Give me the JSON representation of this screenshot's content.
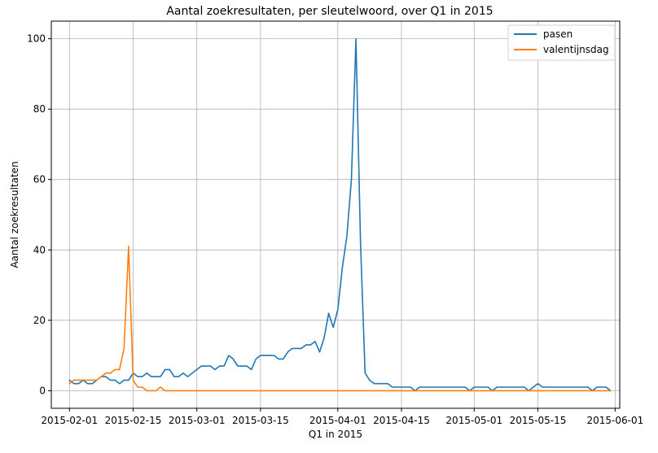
{
  "chart_data": {
    "type": "line",
    "title": "Aantal zoekresultaten, per sleutelwoord, over Q1 in 2015",
    "xlabel": "Q1 in 2015",
    "ylabel": "Aantal zoekresultaten",
    "xlim": [
      "2015-01-28",
      "2015-06-02"
    ],
    "ylim": [
      -5,
      105
    ],
    "grid": true,
    "legend_position": "top-right",
    "x_ticks": [
      "2015-02-01",
      "2015-02-15",
      "2015-03-01",
      "2015-03-15",
      "2015-04-01",
      "2015-04-15",
      "2015-05-01",
      "2015-05-15",
      "2015-06-01"
    ],
    "y_ticks": [
      0,
      20,
      40,
      60,
      80,
      100
    ],
    "series": [
      {
        "name": "pasen",
        "color": "#1f77b4",
        "points": [
          [
            "2015-02-01",
            3
          ],
          [
            "2015-02-02",
            2
          ],
          [
            "2015-02-03",
            2
          ],
          [
            "2015-02-04",
            3
          ],
          [
            "2015-02-05",
            2
          ],
          [
            "2015-02-06",
            2
          ],
          [
            "2015-02-07",
            3
          ],
          [
            "2015-02-08",
            4
          ],
          [
            "2015-02-09",
            4
          ],
          [
            "2015-02-10",
            3
          ],
          [
            "2015-02-11",
            3
          ],
          [
            "2015-02-12",
            2
          ],
          [
            "2015-02-13",
            3
          ],
          [
            "2015-02-14",
            3
          ],
          [
            "2015-02-15",
            5
          ],
          [
            "2015-02-16",
            4
          ],
          [
            "2015-02-17",
            4
          ],
          [
            "2015-02-18",
            5
          ],
          [
            "2015-02-19",
            4
          ],
          [
            "2015-02-20",
            4
          ],
          [
            "2015-02-21",
            4
          ],
          [
            "2015-02-22",
            6
          ],
          [
            "2015-02-23",
            6
          ],
          [
            "2015-02-24",
            4
          ],
          [
            "2015-02-25",
            4
          ],
          [
            "2015-02-26",
            5
          ],
          [
            "2015-02-27",
            4
          ],
          [
            "2015-02-28",
            5
          ],
          [
            "2015-03-01",
            6
          ],
          [
            "2015-03-02",
            7
          ],
          [
            "2015-03-03",
            7
          ],
          [
            "2015-03-04",
            7
          ],
          [
            "2015-03-05",
            6
          ],
          [
            "2015-03-06",
            7
          ],
          [
            "2015-03-07",
            7
          ],
          [
            "2015-03-08",
            10
          ],
          [
            "2015-03-09",
            9
          ],
          [
            "2015-03-10",
            7
          ],
          [
            "2015-03-11",
            7
          ],
          [
            "2015-03-12",
            7
          ],
          [
            "2015-03-13",
            6
          ],
          [
            "2015-03-14",
            9
          ],
          [
            "2015-03-15",
            10
          ],
          [
            "2015-03-16",
            10
          ],
          [
            "2015-03-17",
            10
          ],
          [
            "2015-03-18",
            10
          ],
          [
            "2015-03-19",
            9
          ],
          [
            "2015-03-20",
            9
          ],
          [
            "2015-03-21",
            11
          ],
          [
            "2015-03-22",
            12
          ],
          [
            "2015-03-23",
            12
          ],
          [
            "2015-03-24",
            12
          ],
          [
            "2015-03-25",
            13
          ],
          [
            "2015-03-26",
            13
          ],
          [
            "2015-03-27",
            14
          ],
          [
            "2015-03-28",
            11
          ],
          [
            "2015-03-29",
            15
          ],
          [
            "2015-03-30",
            22
          ],
          [
            "2015-03-31",
            18
          ],
          [
            "2015-04-01",
            23
          ],
          [
            "2015-04-02",
            35
          ],
          [
            "2015-04-03",
            44
          ],
          [
            "2015-04-04",
            60
          ],
          [
            "2015-04-05",
            100
          ],
          [
            "2015-04-06",
            42
          ],
          [
            "2015-04-07",
            5
          ],
          [
            "2015-04-08",
            3
          ],
          [
            "2015-04-09",
            2
          ],
          [
            "2015-04-10",
            2
          ],
          [
            "2015-04-11",
            2
          ],
          [
            "2015-04-12",
            2
          ],
          [
            "2015-04-13",
            1
          ],
          [
            "2015-04-14",
            1
          ],
          [
            "2015-04-15",
            1
          ],
          [
            "2015-04-16",
            1
          ],
          [
            "2015-04-17",
            1
          ],
          [
            "2015-04-18",
            0
          ],
          [
            "2015-04-19",
            1
          ],
          [
            "2015-04-20",
            1
          ],
          [
            "2015-04-21",
            1
          ],
          [
            "2015-04-22",
            1
          ],
          [
            "2015-04-23",
            1
          ],
          [
            "2015-04-24",
            1
          ],
          [
            "2015-04-25",
            1
          ],
          [
            "2015-04-26",
            1
          ],
          [
            "2015-04-27",
            1
          ],
          [
            "2015-04-28",
            1
          ],
          [
            "2015-04-29",
            1
          ],
          [
            "2015-04-30",
            0
          ],
          [
            "2015-05-01",
            1
          ],
          [
            "2015-05-02",
            1
          ],
          [
            "2015-05-03",
            1
          ],
          [
            "2015-05-04",
            1
          ],
          [
            "2015-05-05",
            0
          ],
          [
            "2015-05-06",
            1
          ],
          [
            "2015-05-07",
            1
          ],
          [
            "2015-05-08",
            1
          ],
          [
            "2015-05-09",
            1
          ],
          [
            "2015-05-10",
            1
          ],
          [
            "2015-05-11",
            1
          ],
          [
            "2015-05-12",
            1
          ],
          [
            "2015-05-13",
            0
          ],
          [
            "2015-05-14",
            1
          ],
          [
            "2015-05-15",
            2
          ],
          [
            "2015-05-16",
            1
          ],
          [
            "2015-05-17",
            1
          ],
          [
            "2015-05-18",
            1
          ],
          [
            "2015-05-19",
            1
          ],
          [
            "2015-05-20",
            1
          ],
          [
            "2015-05-21",
            1
          ],
          [
            "2015-05-22",
            1
          ],
          [
            "2015-05-23",
            1
          ],
          [
            "2015-05-24",
            1
          ],
          [
            "2015-05-25",
            1
          ],
          [
            "2015-05-26",
            1
          ],
          [
            "2015-05-27",
            0
          ],
          [
            "2015-05-28",
            1
          ],
          [
            "2015-05-29",
            1
          ],
          [
            "2015-05-30",
            1
          ],
          [
            "2015-05-31",
            0
          ]
        ]
      },
      {
        "name": "valentijnsdag",
        "color": "#ff7f0e",
        "points": [
          [
            "2015-02-01",
            2
          ],
          [
            "2015-02-02",
            3
          ],
          [
            "2015-02-03",
            3
          ],
          [
            "2015-02-04",
            3
          ],
          [
            "2015-02-05",
            3
          ],
          [
            "2015-02-06",
            3
          ],
          [
            "2015-02-07",
            3
          ],
          [
            "2015-02-08",
            4
          ],
          [
            "2015-02-09",
            5
          ],
          [
            "2015-02-10",
            5
          ],
          [
            "2015-02-11",
            6
          ],
          [
            "2015-02-12",
            6
          ],
          [
            "2015-02-13",
            12
          ],
          [
            "2015-02-14",
            41
          ],
          [
            "2015-02-15",
            3
          ],
          [
            "2015-02-16",
            1
          ],
          [
            "2015-02-17",
            1
          ],
          [
            "2015-02-18",
            0
          ],
          [
            "2015-02-19",
            0
          ],
          [
            "2015-02-20",
            0
          ],
          [
            "2015-02-21",
            1
          ],
          [
            "2015-02-22",
            0
          ],
          [
            "2015-02-23",
            0
          ],
          [
            "2015-02-24",
            0
          ],
          [
            "2015-02-25",
            0
          ],
          [
            "2015-03-01",
            0
          ],
          [
            "2015-03-15",
            0
          ],
          [
            "2015-04-01",
            0
          ],
          [
            "2015-04-15",
            0
          ],
          [
            "2015-05-01",
            0
          ],
          [
            "2015-05-15",
            0
          ],
          [
            "2015-05-31",
            0
          ]
        ]
      }
    ]
  }
}
